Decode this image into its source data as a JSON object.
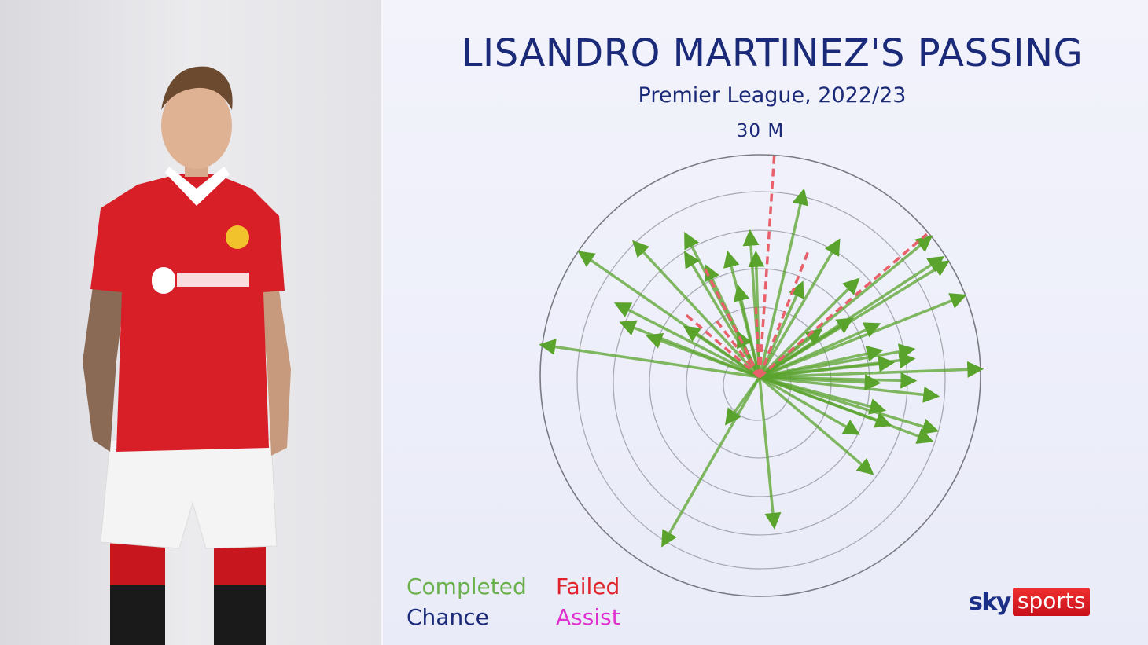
{
  "header": {
    "title": "LISANDRO MARTINEZ'S PASSING",
    "subtitle": "Premier League, 2022/23",
    "scale_label": "30 M"
  },
  "legend": {
    "completed": "Completed",
    "failed": "Failed",
    "chance": "Chance",
    "assist": "Assist"
  },
  "colors": {
    "completed": "#5aa32c",
    "failed": "#e8606a",
    "chance": "#1b2a78",
    "assist": "#e030d0",
    "title": "#1b2a78"
  },
  "logo": {
    "sky": "sky",
    "sports": "sports"
  },
  "chart_data": {
    "type": "scatter",
    "title": "LISANDRO MARTINEZ'S PASSING",
    "subtitle": "Premier League, 2022/23",
    "description_units": "pass vectors from origin, dx (right) / dy (forward) in metres",
    "rings_m": [
      5,
      10,
      15,
      20,
      25,
      30
    ],
    "max_radius_label": "30 M",
    "series": [
      {
        "name": "Completed",
        "vectors": [
          [
            6.0,
            25.4
          ],
          [
            -1.3,
            19.8
          ],
          [
            -10.1,
            19.5
          ],
          [
            -17.1,
            18.4
          ],
          [
            -24.5,
            17.0
          ],
          [
            -29.7,
            4.4
          ],
          [
            -19.5,
            10.0
          ],
          [
            -18.8,
            7.4
          ],
          [
            -10.1,
            16.9
          ],
          [
            -4.3,
            16.9
          ],
          [
            -0.5,
            16.9
          ],
          [
            10.8,
            18.6
          ],
          [
            23.3,
            19.1
          ],
          [
            24.9,
            16.3
          ],
          [
            25.6,
            15.7
          ],
          [
            27.9,
            11.1
          ],
          [
            13.4,
            13.3
          ],
          [
            5.8,
            12.8
          ],
          [
            30.2,
            1.1
          ],
          [
            20.9,
            3.8
          ],
          [
            20.9,
            2.5
          ],
          [
            21.1,
            -0.5
          ],
          [
            24.2,
            -2.6
          ],
          [
            24.1,
            -7.3
          ],
          [
            23.4,
            -8.7
          ],
          [
            16.9,
            -4.5
          ],
          [
            15.3,
            -13.1
          ],
          [
            13.4,
            -7.7
          ],
          [
            2.0,
            -20.4
          ],
          [
            -13.2,
            -22.9
          ],
          [
            -4.5,
            -6.3
          ],
          [
            16.5,
            3.6
          ],
          [
            16.2,
            -0.8
          ],
          [
            18.1,
            2.0
          ],
          [
            17.7,
            -6.5
          ],
          [
            16.2,
            7.2
          ],
          [
            -2.9,
            6.0
          ],
          [
            -10.1,
            6.8
          ],
          [
            -15.2,
            5.6
          ],
          [
            8.3,
            6.4
          ],
          [
            12.5,
            7.9
          ],
          [
            -2.9,
            12.3
          ],
          [
            -7.3,
            15.1
          ]
        ]
      },
      {
        "name": "Failed",
        "vectors": [
          [
            2.0,
            30.2
          ],
          [
            22.8,
            19.5
          ],
          [
            6.6,
            17.1
          ],
          [
            -7.6,
            15.1
          ],
          [
            -10.4,
            8.8
          ],
          [
            -6.1,
            8.0
          ],
          [
            -0.5,
            9.5
          ]
        ]
      },
      {
        "name": "Chance",
        "vectors": []
      },
      {
        "name": "Assist",
        "vectors": []
      }
    ]
  }
}
